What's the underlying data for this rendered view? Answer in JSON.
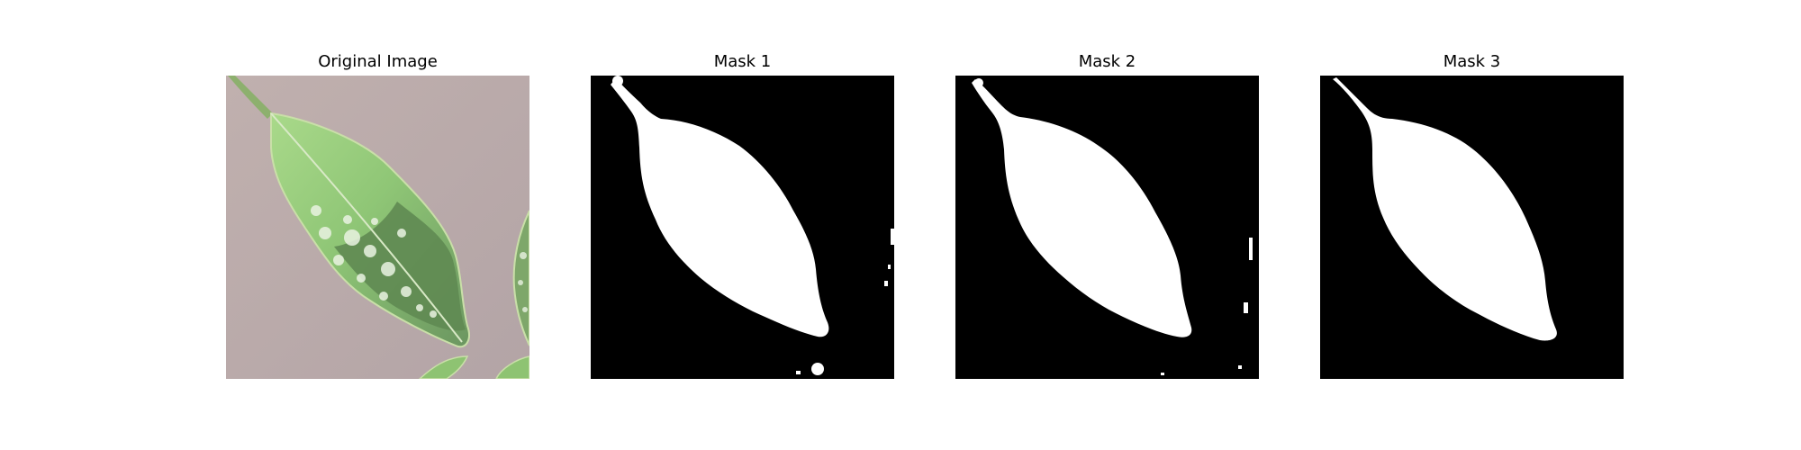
{
  "panels": [
    {
      "title": "Original Image",
      "content": "photo of a variegated green leaf on a grey-pink background"
    },
    {
      "title": "Mask 1",
      "content": "binary segmentation mask"
    },
    {
      "title": "Mask 2",
      "content": "binary segmentation mask"
    },
    {
      "title": "Mask 3",
      "content": "binary segmentation mask"
    }
  ],
  "colors": {
    "background": "#ffffff",
    "mask_background": "#000000",
    "mask_foreground": "#ffffff",
    "photo_background": "#b9a9a9",
    "leaf_light": "#b9da9a",
    "leaf_dark": "#5f8a52"
  }
}
